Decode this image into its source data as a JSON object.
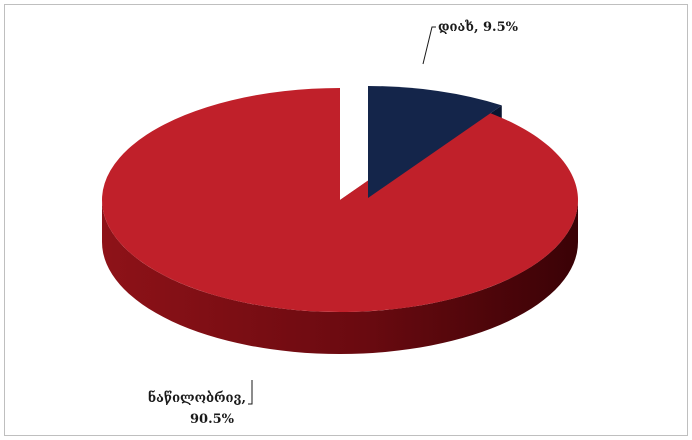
{
  "chart_data": {
    "type": "pie",
    "title": "",
    "categories": [
      "დიახ",
      "ნაწილობრივ"
    ],
    "values": [
      9.5,
      90.5
    ],
    "labels": [
      {
        "category": "დიახ",
        "value_text": "9.5%",
        "text": "დიახ, 9.5%"
      },
      {
        "category": "ნაწილობრივ",
        "value_text": "90.5%",
        "text_line1": "ნაწილობრივ,",
        "text_line2": "90.5%"
      }
    ],
    "legend": "none",
    "style": "3d-exploded"
  },
  "colors": {
    "slice_yes_top": "#14254a",
    "slice_yes_side": "#0a1530",
    "slice_partial_top": "#c0202a",
    "slice_partial_side": "#7a0e14",
    "frame_border": "#bfbfbf"
  }
}
